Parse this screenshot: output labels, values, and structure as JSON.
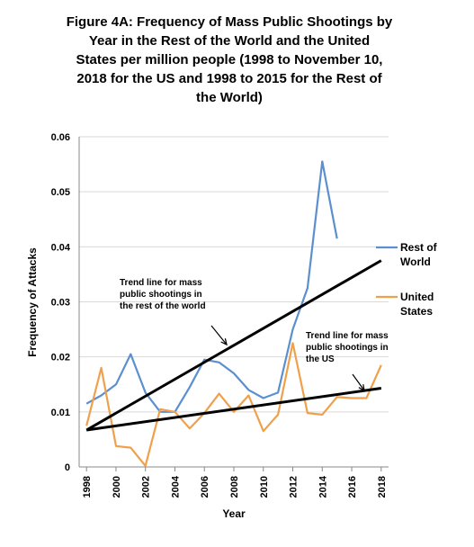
{
  "chart_data": {
    "type": "line",
    "title": "Figure 4A: Frequency of Mass Public Shootings by Year in the Rest of the World and the United States per million people (1998 to November 10, 2018 for the US and 1998 to 2015 for the Rest of the World)",
    "title_lines": [
      "Figure 4A: Frequency of Mass Public Shootings by",
      "Year in the Rest of the World and the United",
      "States per million people (1998 to November 10,",
      "2018 for the US and 1998 to 2015 for the Rest of",
      "the World)"
    ],
    "xlabel": "Year",
    "ylabel": "Frequency of Attacks",
    "xlim": [
      1997.5,
      2018.5
    ],
    "ylim": [
      0,
      0.06
    ],
    "x_ticks": [
      "1998",
      "2000",
      "2002",
      "2004",
      "2006",
      "2008",
      "2010",
      "2012",
      "2014",
      "2016",
      "2018"
    ],
    "y_ticks": [
      "0",
      "0.01",
      "0.02",
      "0.03",
      "0.04",
      "0.05",
      "0.06"
    ],
    "grid": "horizontal",
    "legend_position": "right",
    "series": [
      {
        "name": "Rest of World",
        "label_lines": [
          "Rest of",
          "World"
        ],
        "color": "#5b8fcf",
        "x": [
          1998,
          1999,
          2000,
          2001,
          2002,
          2003,
          2004,
          2005,
          2006,
          2007,
          2008,
          2009,
          2010,
          2011,
          2012,
          2013,
          2014,
          2015
        ],
        "y": [
          0.0115,
          0.013,
          0.015,
          0.0205,
          0.0135,
          0.01,
          0.01,
          0.0145,
          0.0195,
          0.019,
          0.017,
          0.014,
          0.0125,
          0.0135,
          0.025,
          0.0325,
          0.0555,
          0.0415
        ]
      },
      {
        "name": "United States",
        "label_lines": [
          "United",
          "States"
        ],
        "color": "#f0a04b",
        "x": [
          1998,
          1999,
          2000,
          2001,
          2002,
          2003,
          2004,
          2005,
          2006,
          2007,
          2008,
          2009,
          2010,
          2011,
          2012,
          2013,
          2014,
          2015,
          2016,
          2017,
          2018
        ],
        "y": [
          0.0075,
          0.018,
          0.0038,
          0.0035,
          0.0002,
          0.0105,
          0.01,
          0.007,
          0.0098,
          0.0133,
          0.01,
          0.013,
          0.0065,
          0.0095,
          0.0225,
          0.0098,
          0.0095,
          0.0127,
          0.0125,
          0.0125,
          0.0185
        ]
      }
    ],
    "trend_lines": [
      {
        "name": "Trend line for mass public shootings in the rest of the world",
        "color": "#000000",
        "x": [
          1998,
          2018
        ],
        "y": [
          0.0067,
          0.0375
        ]
      },
      {
        "name": "Trend line for mass public shootings in the US",
        "color": "#000000",
        "x": [
          1998,
          2018
        ],
        "y": [
          0.0067,
          0.0143
        ]
      }
    ],
    "annotations": [
      {
        "lines": [
          "Trend line for mass",
          "public shootings in",
          "the rest of the world"
        ],
        "points_to_year": 2005.5
      },
      {
        "lines": [
          "Trend line for mass",
          "public shootings in",
          "the US"
        ],
        "points_to_year": 2016.9
      }
    ]
  }
}
